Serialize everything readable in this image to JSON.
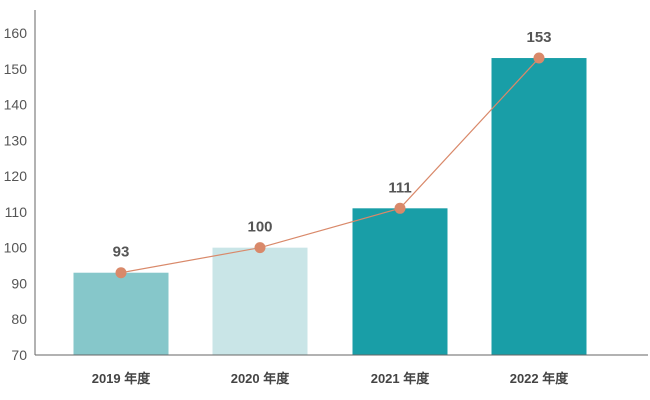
{
  "chart_data": {
    "type": "bar",
    "categories": [
      "2019 年度",
      "2020 年度",
      "2021 年度",
      "2022 年度"
    ],
    "values": [
      93,
      100,
      111,
      153
    ],
    "data_labels": [
      "93",
      "100",
      "111",
      "153"
    ],
    "overlay_line": {
      "values": [
        93,
        100,
        111,
        153
      ],
      "color": "#d9896a",
      "marker_color": "#d9896a"
    },
    "bar_colors": [
      "#86c7ca",
      "#c9e5e7",
      "#199ea7",
      "#199ea7"
    ],
    "ylim": [
      70,
      160
    ],
    "yticks": [
      70,
      80,
      90,
      100,
      110,
      120,
      130,
      140,
      150,
      160
    ],
    "ytick_labels": [
      "70",
      "80",
      "90",
      "100",
      "110",
      "120",
      "130",
      "140",
      "150",
      "160"
    ],
    "title": "",
    "xlabel": "",
    "ylabel": "",
    "grid": false,
    "legend": "none"
  }
}
